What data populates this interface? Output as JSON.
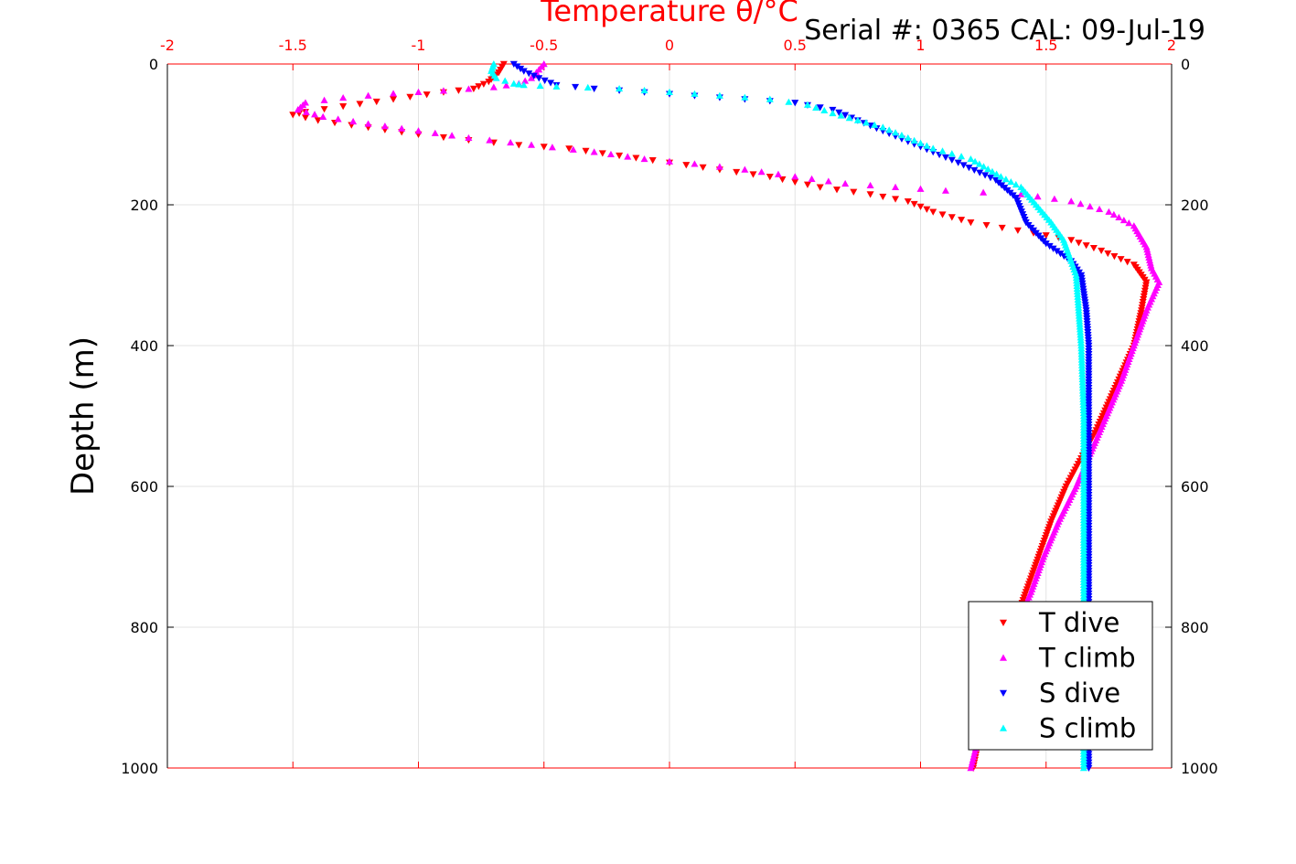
{
  "chart_data": {
    "type": "scatter",
    "title": "Temperature θ/°C",
    "title_color": "#ff0000",
    "annotation": "Serial #: 0365  CAL: 09-Jul-19",
    "xlabel": "Temperature θ/°C",
    "ylabel": "Depth (m)",
    "xlim": [
      -2,
      2
    ],
    "ylim": [
      0,
      1000
    ],
    "y_reversed": true,
    "grid": true,
    "x_axis_position": "top",
    "x_ticks": [
      "-2",
      "-1.5",
      "-1",
      "-0.5",
      "0",
      "0.5",
      "1",
      "1.5",
      "2"
    ],
    "y_ticks": [
      "0",
      "200",
      "400",
      "600",
      "800",
      "1000"
    ],
    "legend_position": "bottom-right",
    "series": [
      {
        "name": "T dive",
        "color": "#ff0000",
        "marker": "triangle-down",
        "x": [
          -0.66,
          -0.68,
          -0.72,
          -0.78,
          -0.9,
          -1.1,
          -1.3,
          -1.45,
          -1.5,
          -1.4,
          -1.2,
          -1.0,
          -0.8,
          -0.6,
          -0.4,
          -0.2,
          0.0,
          0.2,
          0.4,
          0.6,
          0.8,
          0.95,
          1.05,
          1.2,
          1.45,
          1.6,
          1.72,
          1.85,
          1.9,
          1.88,
          1.85,
          1.8,
          1.75,
          1.7,
          1.64,
          1.58,
          1.52,
          1.47,
          1.42,
          1.37,
          1.3,
          1.25,
          1.21
        ],
        "y": [
          0,
          12,
          25,
          35,
          40,
          50,
          60,
          68,
          72,
          80,
          90,
          100,
          108,
          115,
          120,
          130,
          140,
          150,
          160,
          175,
          185,
          195,
          210,
          225,
          240,
          250,
          265,
          285,
          310,
          350,
          400,
          440,
          480,
          520,
          560,
          600,
          650,
          700,
          750,
          800,
          860,
          930,
          1000
        ]
      },
      {
        "name": "T climb",
        "color": "#ff00ff",
        "marker": "triangle-up",
        "x": [
          -0.5,
          -0.55,
          -0.6,
          -0.7,
          -0.9,
          -1.1,
          -1.3,
          -1.45,
          -1.48,
          -1.38,
          -1.2,
          -1.0,
          -0.8,
          -0.55,
          -0.3,
          -0.1,
          0.1,
          0.3,
          0.5,
          0.7,
          0.9,
          1.1,
          1.4,
          1.6,
          1.75,
          1.85,
          1.9,
          1.92,
          1.95,
          1.9,
          1.85,
          1.8,
          1.74,
          1.68,
          1.62,
          1.55,
          1.49,
          1.44,
          1.38,
          1.3,
          1.25,
          1.2
        ],
        "y": [
          0,
          20,
          28,
          33,
          38,
          42,
          48,
          55,
          65,
          75,
          85,
          95,
          105,
          115,
          125,
          135,
          142,
          150,
          160,
          170,
          175,
          180,
          185,
          195,
          210,
          230,
          260,
          290,
          310,
          350,
          400,
          450,
          500,
          550,
          600,
          650,
          700,
          750,
          800,
          860,
          930,
          1000
        ]
      },
      {
        "name": "S dive",
        "color": "#0000ff",
        "marker": "triangle-down",
        "x": [
          -0.62,
          -0.58,
          -0.52,
          -0.45,
          -0.3,
          -0.1,
          0.1,
          0.3,
          0.5,
          0.65,
          0.75,
          0.85,
          0.95,
          1.05,
          1.15,
          1.3,
          1.38,
          1.42,
          1.5,
          1.6,
          1.64,
          1.66,
          1.67,
          1.67,
          1.67,
          1.67,
          1.67,
          1.67,
          1.67
        ],
        "y": [
          0,
          10,
          20,
          30,
          35,
          40,
          45,
          50,
          55,
          65,
          80,
          95,
          110,
          125,
          140,
          165,
          190,
          225,
          255,
          280,
          300,
          350,
          400,
          500,
          600,
          700,
          800,
          900,
          1000
        ]
      },
      {
        "name": "S climb",
        "color": "#00ffff",
        "marker": "triangle-up",
        "x": [
          -0.7,
          -0.71,
          -0.69,
          -0.62,
          -0.58,
          -0.45,
          -0.2,
          0.0,
          0.2,
          0.4,
          0.55,
          0.65,
          0.75,
          0.85,
          0.95,
          1.05,
          1.2,
          1.32,
          1.4,
          1.46,
          1.52,
          1.57,
          1.6,
          1.62,
          1.63,
          1.64,
          1.65,
          1.65,
          1.65,
          1.65,
          1.65
        ],
        "y": [
          0,
          10,
          20,
          28,
          30,
          32,
          35,
          40,
          45,
          50,
          58,
          70,
          80,
          90,
          105,
          120,
          135,
          160,
          175,
          200,
          225,
          250,
          280,
          300,
          350,
          400,
          500,
          600,
          700,
          800,
          1000
        ]
      }
    ]
  }
}
